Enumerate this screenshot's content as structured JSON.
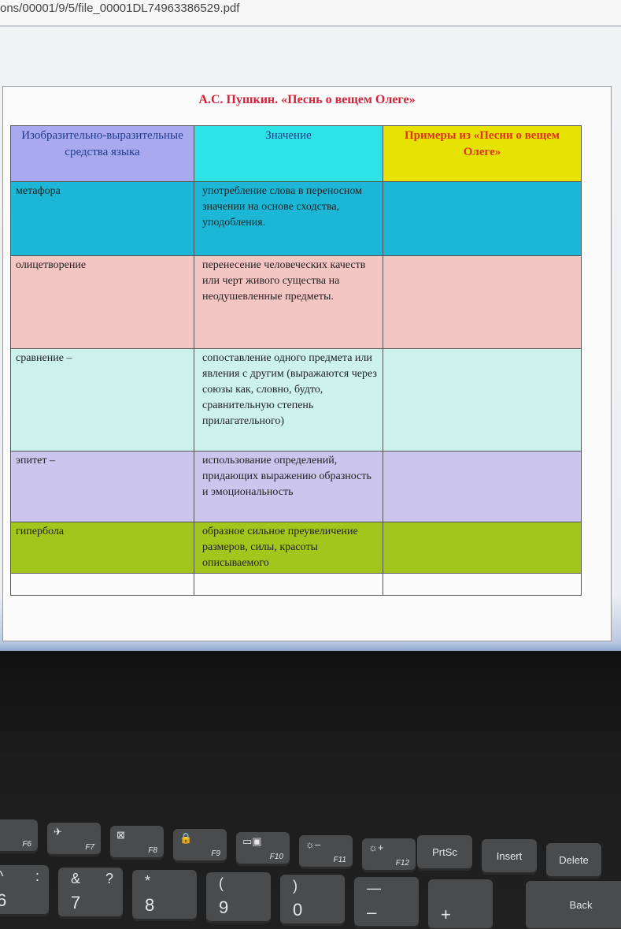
{
  "browser": {
    "url": "ons/00001/9/5/file_00001DL74963386529.pdf"
  },
  "document": {
    "title": "А.С. Пушкин. «Песнь о вещем Олеге»",
    "headers": [
      "Изобразительно-выразительные средства языка",
      "Значение",
      "Примеры из «Песни о вещем Олеге»"
    ],
    "header_colors": [
      "#a9a9ef",
      "#2ee3e6",
      "#e6e202"
    ],
    "rows": [
      {
        "term": "метафора",
        "meaning": "употребление слова в переносном значении на основе сходства, уподобления.",
        "example": "",
        "color": "#1cb7d6"
      },
      {
        "term": "олицетворение",
        "meaning": "перенесение человеческих качеств  или черт живого существа на неодушевленные предметы.",
        "example": "",
        "color": "#f3c5c3"
      },
      {
        "term": "сравнение –",
        "meaning": "сопоставление одного предмета или явления с другим (выражаются через союзы как, словно, будто, сравнительную степень прилагательного)",
        "example": "",
        "color": "#cdf2ee"
      },
      {
        "term": "эпитет –",
        "meaning": "использование определений, придающих выражению образность и  эмоциональность",
        "example": "",
        "color": "#ccc6ef"
      },
      {
        "term": "гипербола",
        "meaning": "образное сильное преувеличение размеров, силы, красоты описываемого",
        "example": "",
        "color": "#a3c61c"
      },
      {
        "term": "",
        "meaning": "",
        "example": "",
        "color": "#fbfbfb"
      }
    ]
  },
  "keyboard": {
    "fkeys": [
      {
        "label": "F6",
        "icon": "display-icon"
      },
      {
        "label": "F7",
        "icon": "airplane-icon",
        "glyph": "✈"
      },
      {
        "label": "F8",
        "icon": "camera-off-icon",
        "glyph": "⊠"
      },
      {
        "label": "F9",
        "icon": "lock-icon",
        "glyph": "🔒"
      },
      {
        "label": "F10",
        "icon": "dual-display-icon",
        "glyph": "▭▣"
      },
      {
        "label": "F11",
        "icon": "brightness-down-icon",
        "glyph": "☼–"
      },
      {
        "label": "F12",
        "icon": "brightness-up-icon",
        "glyph": "☼+"
      }
    ],
    "special": [
      "PrtSc",
      "Insert",
      "Delete"
    ],
    "numbers": [
      {
        "n": "6",
        "s": "^",
        "s2": ":"
      },
      {
        "n": "7",
        "s": "&",
        "s2": "?"
      },
      {
        "n": "8",
        "s": "*",
        "s2": ""
      },
      {
        "n": "9",
        "s": "(",
        "s2": ""
      },
      {
        "n": "0",
        "s": ")",
        "s2": ""
      },
      {
        "n": "–",
        "s": "—",
        "s2": ""
      },
      {
        "n": "+",
        "s": "",
        "s2": ""
      }
    ],
    "partial": "Back"
  }
}
